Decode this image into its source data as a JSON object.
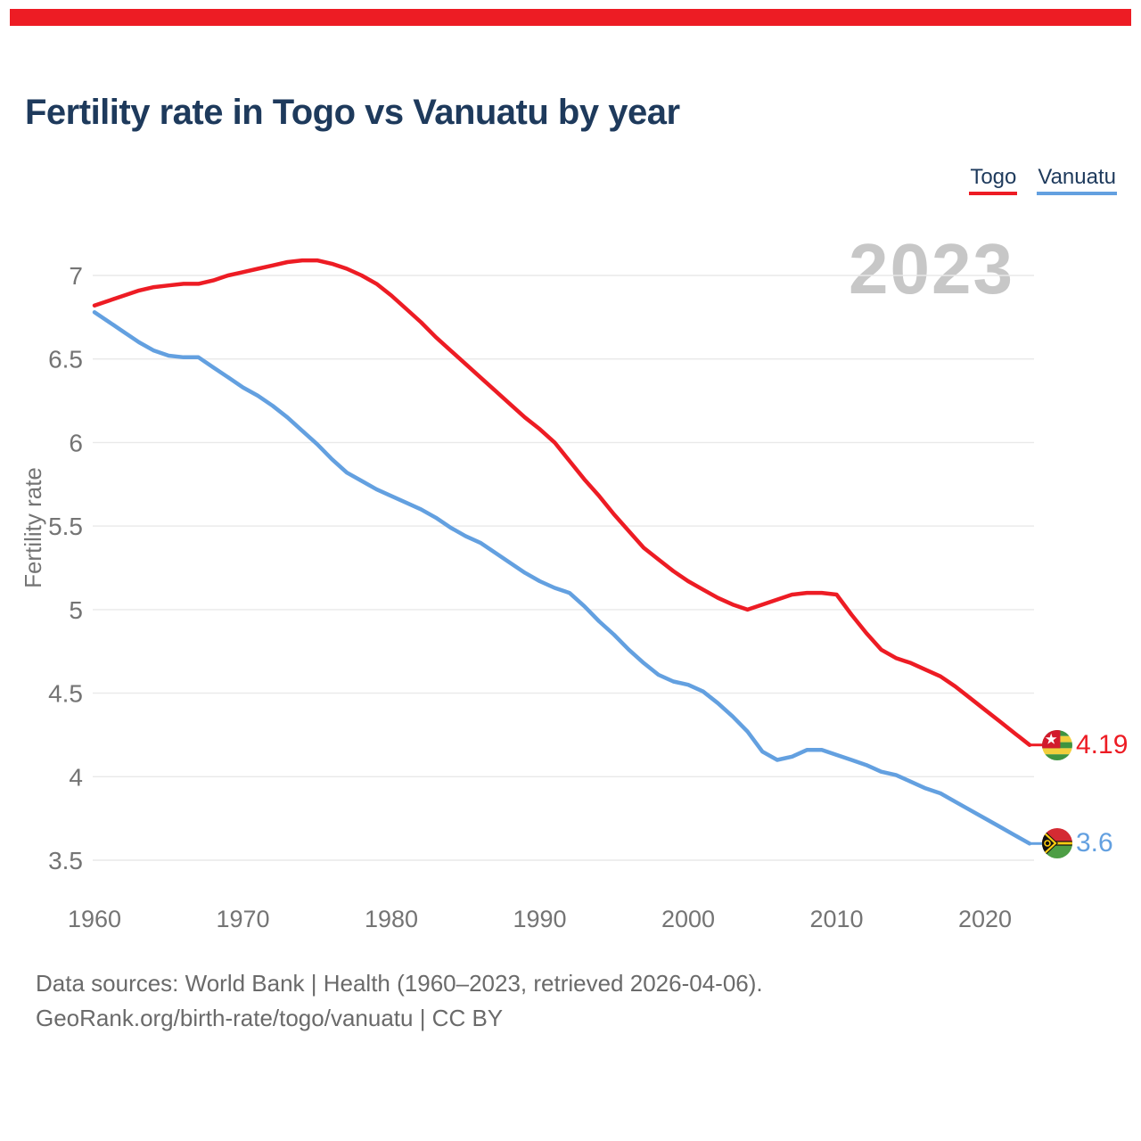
{
  "page": {
    "title": "Fertility rate in Togo vs Vanuatu by year",
    "watermark_year": "2023"
  },
  "colors": {
    "togo_red": "#ed1c24",
    "vanuatu_blue": "#63a0e0",
    "navy": "#1e3a5c",
    "axis_gray": "#747474",
    "footer_gray": "#6a6a6a",
    "watermark_gray": "#c7c7c7",
    "gridline": "#e9e9e9"
  },
  "footer": {
    "line1": "Data sources: World Bank | Health (1960–2023, retrieved 2026-04-06).",
    "line2": "GeoRank.org/birth-rate/togo/vanuatu | CC BY"
  },
  "chart_data": {
    "type": "line",
    "title": "Fertility rate in Togo vs Vanuatu by year",
    "xlabel": "",
    "ylabel": "Fertility rate",
    "ylim": [
      3.5,
      7
    ],
    "xlim": [
      1960,
      2023
    ],
    "yticks": [
      7,
      6.5,
      6,
      5.5,
      5,
      4.5,
      4,
      3.5
    ],
    "xticks": [
      1960,
      1970,
      1980,
      1990,
      2000,
      2010,
      2020
    ],
    "grid": true,
    "legend_position": "top-right",
    "watermark": "2023",
    "x": [
      1960,
      1961,
      1962,
      1963,
      1964,
      1965,
      1966,
      1967,
      1968,
      1969,
      1970,
      1971,
      1972,
      1973,
      1974,
      1975,
      1976,
      1977,
      1978,
      1979,
      1980,
      1981,
      1982,
      1983,
      1984,
      1985,
      1986,
      1987,
      1988,
      1989,
      1990,
      1991,
      1992,
      1993,
      1994,
      1995,
      1996,
      1997,
      1998,
      1999,
      2000,
      2001,
      2002,
      2003,
      2004,
      2005,
      2006,
      2007,
      2008,
      2009,
      2010,
      2011,
      2012,
      2013,
      2014,
      2015,
      2016,
      2017,
      2018,
      2019,
      2020,
      2021,
      2022,
      2023
    ],
    "series": [
      {
        "name": "Togo",
        "color": "#ed1c24",
        "end_label": "4.19",
        "flag_icon": "togo-flag-icon",
        "values": [
          6.82,
          6.85,
          6.88,
          6.91,
          6.93,
          6.94,
          6.95,
          6.95,
          6.97,
          7.0,
          7.02,
          7.04,
          7.06,
          7.08,
          7.09,
          7.09,
          7.07,
          7.04,
          7.0,
          6.95,
          6.88,
          6.8,
          6.72,
          6.63,
          6.55,
          6.47,
          6.39,
          6.31,
          6.23,
          6.15,
          6.08,
          6.0,
          5.89,
          5.78,
          5.68,
          5.57,
          5.47,
          5.37,
          5.3,
          5.23,
          5.17,
          5.12,
          5.07,
          5.03,
          5.0,
          5.03,
          5.06,
          5.09,
          5.1,
          5.1,
          5.09,
          4.97,
          4.86,
          4.76,
          4.71,
          4.68,
          4.64,
          4.6,
          4.54,
          4.47,
          4.4,
          4.33,
          4.26,
          4.19
        ]
      },
      {
        "name": "Vanuatu",
        "color": "#63a0e0",
        "end_label": "3.6",
        "flag_icon": "vanuatu-flag-icon",
        "values": [
          6.78,
          6.72,
          6.66,
          6.6,
          6.55,
          6.52,
          6.51,
          6.51,
          6.45,
          6.39,
          6.33,
          6.28,
          6.22,
          6.15,
          6.07,
          5.99,
          5.9,
          5.82,
          5.77,
          5.72,
          5.68,
          5.64,
          5.6,
          5.55,
          5.49,
          5.44,
          5.4,
          5.34,
          5.28,
          5.22,
          5.17,
          5.13,
          5.1,
          5.02,
          4.93,
          4.85,
          4.76,
          4.68,
          4.61,
          4.57,
          4.55,
          4.51,
          4.44,
          4.36,
          4.27,
          4.15,
          4.1,
          4.12,
          4.16,
          4.16,
          4.13,
          4.1,
          4.07,
          4.03,
          4.01,
          3.97,
          3.93,
          3.9,
          3.85,
          3.8,
          3.75,
          3.7,
          3.65,
          3.6
        ]
      }
    ]
  }
}
